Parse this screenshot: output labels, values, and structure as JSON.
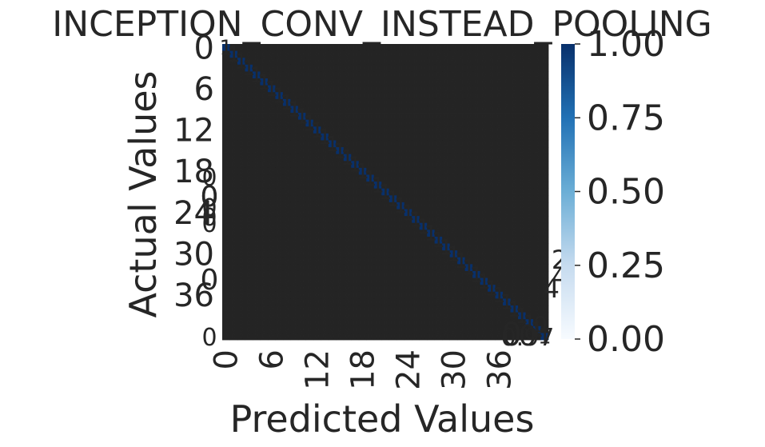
{
  "chart_data": {
    "type": "heatmap",
    "title": "INCEPTION_CONV_INSTEAD_POOLING",
    "xlabel": "Predicted Values",
    "ylabel": "Actual Values",
    "n_classes": 43,
    "x_tick_labels": [
      "0",
      "6",
      "12",
      "18",
      "24",
      "30",
      "36"
    ],
    "y_tick_labels": [
      "0",
      "6",
      "12",
      "18",
      "24",
      "30",
      "36"
    ],
    "x_tick_positions": [
      0,
      6,
      12,
      18,
      24,
      30,
      36
    ],
    "y_tick_positions": [
      0,
      6,
      12,
      18,
      24,
      30,
      36
    ],
    "value_range": [
      0,
      1
    ],
    "diagonal_value": 1.0,
    "off_diagonal_value": 0.0,
    "colormap": "Blues",
    "colors": {
      "low": "#f7fbff",
      "high": "#08306b",
      "background": "#ffffff",
      "text": "#262626"
    },
    "colorbar": {
      "ticks": [
        0.0,
        0.25,
        0.5,
        0.75,
        1.0
      ],
      "tick_labels": [
        "0.00",
        "0.25",
        "0.50",
        "0.75",
        "1.00"
      ]
    },
    "annotations": {
      "diagonal": "1",
      "off_diagonal": "0",
      "stray_labels": [
        "0",
        "0",
        "0",
        "0",
        "0",
        "0",
        "0",
        "0",
        "0",
        "0",
        "0",
        "0.97",
        "2",
        "4",
        "41"
      ]
    }
  }
}
